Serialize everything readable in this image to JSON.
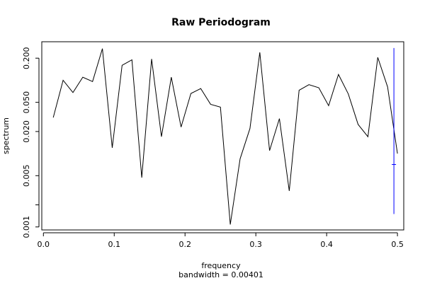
{
  "chart_data": {
    "type": "line",
    "title": "Raw Periodogram",
    "xlabel": "frequency",
    "sublabel": "bandwidth = 0.00401",
    "ylabel": "spectrum",
    "y_scale": "log",
    "xlim": [
      0.0,
      0.5
    ],
    "ylim": [
      0.001,
      0.3
    ],
    "x_ticks": [
      0.0,
      0.1,
      0.2,
      0.3,
      0.4,
      0.5
    ],
    "x_tick_labels": [
      "0.0",
      "0.1",
      "0.2",
      "0.3",
      "0.4",
      "0.5"
    ],
    "y_ticks": [
      0.001,
      0.002,
      0.005,
      0.02,
      0.05,
      0.2
    ],
    "y_tick_labels": [
      "0.001",
      "",
      "0.005",
      "0.020",
      "0.050",
      "0.200"
    ],
    "series": [
      {
        "color": "#000000",
        "x": [
          0.0139,
          0.0278,
          0.0417,
          0.0556,
          0.0694,
          0.0833,
          0.0972,
          0.1111,
          0.125,
          0.1389,
          0.1528,
          0.1667,
          0.1806,
          0.1944,
          0.2083,
          0.2222,
          0.2361,
          0.25,
          0.2639,
          0.2778,
          0.2917,
          0.3056,
          0.3194,
          0.3333,
          0.3472,
          0.3611,
          0.375,
          0.3889,
          0.4028,
          0.4167,
          0.4306,
          0.4444,
          0.4583,
          0.4722,
          0.4861,
          0.5
        ],
        "y": [
          0.031,
          0.1,
          0.068,
          0.11,
          0.096,
          0.27,
          0.012,
          0.16,
          0.19,
          0.0047,
          0.195,
          0.017,
          0.11,
          0.023,
          0.066,
          0.077,
          0.047,
          0.043,
          0.00108,
          0.0085,
          0.022,
          0.24,
          0.011,
          0.03,
          0.0031,
          0.073,
          0.087,
          0.079,
          0.045,
          0.12,
          0.065,
          0.025,
          0.017,
          0.205,
          0.081,
          0.01
        ]
      }
    ],
    "ci_bar": {
      "color": "#0000ff",
      "x": 0.495,
      "y_low": 0.0015,
      "y_high": 0.275,
      "y_center": 0.0071
    }
  }
}
